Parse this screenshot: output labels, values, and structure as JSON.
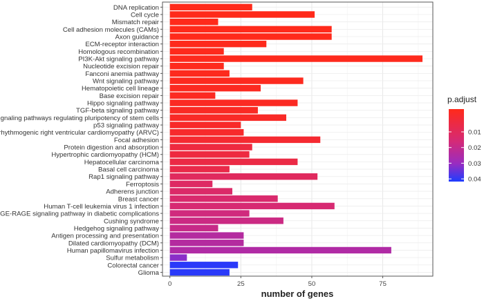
{
  "chart_data": {
    "type": "bar",
    "orientation": "horizontal",
    "xlabel": "number of genes",
    "ylabel": "",
    "xlim": [
      0,
      92
    ],
    "xticks": [
      0,
      25,
      50,
      75
    ],
    "grid": true,
    "legend": {
      "title": "p.adjust",
      "placement": "right",
      "ticks": [
        0.01,
        0.02,
        0.03,
        0.04
      ],
      "range": [
        0.0005,
        0.042
      ],
      "low_color": "#ff2a1a",
      "high_color": "#1e3cff"
    },
    "categories": [
      "DNA replication",
      "Cell cycle",
      "Mismatch repair",
      "Cell adhesion molecules (CAMs)",
      "Axon guidance",
      "ECM-receptor interaction",
      "Homologous recombination",
      "PI3K-Akt signaling pathway",
      "Nucleotide excision repair",
      "Fanconi anemia pathway",
      "Wnt signaling pathway",
      "Hematopoietic cell lineage",
      "Base excision repair",
      "Hippo signaling pathway",
      "TGF-beta signaling pathway",
      "Signaling pathways regulating pluripotency of stem cells",
      "p53 signaling pathway",
      "Arrhythmogenic right ventricular cardiomyopathy (ARVC)",
      "Focal adhesion",
      "Protein digestion and absorption",
      "Hypertrophic cardiomyopathy (HCM)",
      "Hepatocellular carcinoma",
      "Basal cell carcinoma",
      "Rap1 signaling pathway",
      "Ferroptosis",
      "Adherens junction",
      "Breast cancer",
      "Human T-cell leukemia virus 1 infection",
      "AGE-RAGE signaling pathway in diabetic complications",
      "Cushing syndrome",
      "Hedgehog signaling pathway",
      "Antigen processing and presentation",
      "Dilated cardiomyopathy (DCM)",
      "Human papillomavirus infection",
      "Sulfur metabolism",
      "Colorectal cancer",
      "Glioma"
    ],
    "values": [
      29,
      51,
      17,
      57,
      57,
      34,
      19,
      89,
      19,
      21,
      47,
      32,
      16,
      45,
      31,
      41,
      25,
      26,
      53,
      29,
      28,
      45,
      21,
      52,
      15,
      22,
      38,
      58,
      28,
      40,
      17,
      26,
      26,
      78,
      6,
      24,
      21
    ],
    "p_adjust": [
      0.0005,
      0.0005,
      0.0006,
      0.0006,
      0.0007,
      0.0008,
      0.0009,
      0.001,
      0.001,
      0.0012,
      0.0015,
      0.0018,
      0.002,
      0.0022,
      0.0025,
      0.003,
      0.0035,
      0.004,
      0.005,
      0.008,
      0.008,
      0.009,
      0.01,
      0.014,
      0.015,
      0.016,
      0.017,
      0.018,
      0.02,
      0.021,
      0.022,
      0.026,
      0.026,
      0.027,
      0.033,
      0.041,
      0.041
    ]
  }
}
